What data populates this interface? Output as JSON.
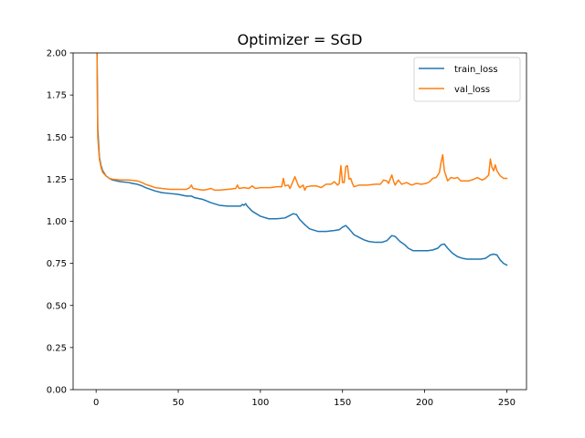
{
  "chart_data": {
    "type": "line",
    "title": "Optimizer = SGD",
    "xlabel": "",
    "ylabel": "",
    "xlim": [
      -14,
      262
    ],
    "ylim": [
      0.0,
      2.0
    ],
    "xticks": [
      0,
      50,
      100,
      150,
      200,
      250
    ],
    "xtick_labels": [
      "0",
      "50",
      "100",
      "150",
      "200",
      "250"
    ],
    "yticks": [
      0.0,
      0.25,
      0.5,
      0.75,
      1.0,
      1.25,
      1.5,
      1.75,
      2.0
    ],
    "ytick_labels": [
      "0.00",
      "0.25",
      "0.50",
      "0.75",
      "1.00",
      "1.25",
      "1.50",
      "1.75",
      "2.00"
    ],
    "grid": false,
    "legend_position": "upper right",
    "series": [
      {
        "name": "train_loss",
        "color": "#1f77b4",
        "points": [
          [
            0,
            2.6
          ],
          [
            1,
            1.55
          ],
          [
            2,
            1.38
          ],
          [
            3,
            1.33
          ],
          [
            4,
            1.3
          ],
          [
            6,
            1.27
          ],
          [
            8,
            1.255
          ],
          [
            10,
            1.245
          ],
          [
            15,
            1.235
          ],
          [
            20,
            1.23
          ],
          [
            22,
            1.225
          ],
          [
            25,
            1.22
          ],
          [
            28,
            1.21
          ],
          [
            30,
            1.2
          ],
          [
            33,
            1.19
          ],
          [
            36,
            1.18
          ],
          [
            40,
            1.17
          ],
          [
            45,
            1.165
          ],
          [
            50,
            1.16
          ],
          [
            55,
            1.15
          ],
          [
            58,
            1.15
          ],
          [
            60,
            1.14
          ],
          [
            65,
            1.13
          ],
          [
            70,
            1.11
          ],
          [
            75,
            1.095
          ],
          [
            80,
            1.09
          ],
          [
            85,
            1.09
          ],
          [
            88,
            1.09
          ],
          [
            89,
            1.1
          ],
          [
            90,
            1.095
          ],
          [
            91,
            1.105
          ],
          [
            92,
            1.09
          ],
          [
            95,
            1.06
          ],
          [
            100,
            1.03
          ],
          [
            105,
            1.015
          ],
          [
            110,
            1.015
          ],
          [
            115,
            1.02
          ],
          [
            118,
            1.035
          ],
          [
            120,
            1.045
          ],
          [
            122,
            1.04
          ],
          [
            124,
            1.01
          ],
          [
            127,
            0.98
          ],
          [
            130,
            0.955
          ],
          [
            135,
            0.94
          ],
          [
            140,
            0.94
          ],
          [
            145,
            0.945
          ],
          [
            148,
            0.95
          ],
          [
            150,
            0.965
          ],
          [
            152,
            0.975
          ],
          [
            154,
            0.955
          ],
          [
            157,
            0.92
          ],
          [
            160,
            0.905
          ],
          [
            163,
            0.89
          ],
          [
            166,
            0.88
          ],
          [
            170,
            0.875
          ],
          [
            174,
            0.875
          ],
          [
            177,
            0.885
          ],
          [
            180,
            0.915
          ],
          [
            182,
            0.91
          ],
          [
            185,
            0.88
          ],
          [
            188,
            0.86
          ],
          [
            190,
            0.84
          ],
          [
            193,
            0.825
          ],
          [
            198,
            0.825
          ],
          [
            202,
            0.825
          ],
          [
            205,
            0.83
          ],
          [
            208,
            0.84
          ],
          [
            210,
            0.86
          ],
          [
            212,
            0.865
          ],
          [
            214,
            0.84
          ],
          [
            217,
            0.81
          ],
          [
            220,
            0.79
          ],
          [
            223,
            0.78
          ],
          [
            226,
            0.775
          ],
          [
            230,
            0.775
          ],
          [
            234,
            0.775
          ],
          [
            237,
            0.78
          ],
          [
            240,
            0.8
          ],
          [
            242,
            0.805
          ],
          [
            244,
            0.8
          ],
          [
            246,
            0.77
          ],
          [
            248,
            0.75
          ],
          [
            250,
            0.74
          ]
        ]
      },
      {
        "name": "val_loss",
        "color": "#ff7f0e",
        "points": [
          [
            0,
            2.6
          ],
          [
            1,
            1.5
          ],
          [
            2,
            1.37
          ],
          [
            3,
            1.32
          ],
          [
            4,
            1.29
          ],
          [
            6,
            1.27
          ],
          [
            8,
            1.255
          ],
          [
            10,
            1.25
          ],
          [
            15,
            1.245
          ],
          [
            20,
            1.245
          ],
          [
            25,
            1.24
          ],
          [
            28,
            1.23
          ],
          [
            30,
            1.22
          ],
          [
            33,
            1.21
          ],
          [
            36,
            1.2
          ],
          [
            40,
            1.195
          ],
          [
            45,
            1.19
          ],
          [
            50,
            1.19
          ],
          [
            55,
            1.19
          ],
          [
            57,
            1.2
          ],
          [
            58,
            1.215
          ],
          [
            59,
            1.195
          ],
          [
            62,
            1.19
          ],
          [
            65,
            1.185
          ],
          [
            68,
            1.19
          ],
          [
            70,
            1.195
          ],
          [
            72,
            1.185
          ],
          [
            75,
            1.185
          ],
          [
            80,
            1.19
          ],
          [
            85,
            1.195
          ],
          [
            86,
            1.215
          ],
          [
            87,
            1.195
          ],
          [
            90,
            1.2
          ],
          [
            93,
            1.195
          ],
          [
            95,
            1.21
          ],
          [
            97,
            1.195
          ],
          [
            100,
            1.2
          ],
          [
            103,
            1.2
          ],
          [
            106,
            1.2
          ],
          [
            110,
            1.205
          ],
          [
            113,
            1.205
          ],
          [
            114,
            1.255
          ],
          [
            115,
            1.21
          ],
          [
            117,
            1.215
          ],
          [
            118,
            1.195
          ],
          [
            120,
            1.24
          ],
          [
            121,
            1.265
          ],
          [
            122,
            1.24
          ],
          [
            123,
            1.215
          ],
          [
            124,
            1.2
          ],
          [
            126,
            1.215
          ],
          [
            127,
            1.185
          ],
          [
            128,
            1.205
          ],
          [
            131,
            1.21
          ],
          [
            134,
            1.21
          ],
          [
            137,
            1.2
          ],
          [
            140,
            1.22
          ],
          [
            143,
            1.22
          ],
          [
            145,
            1.235
          ],
          [
            147,
            1.215
          ],
          [
            148,
            1.225
          ],
          [
            149,
            1.33
          ],
          [
            150,
            1.23
          ],
          [
            151,
            1.23
          ],
          [
            152,
            1.325
          ],
          [
            153,
            1.33
          ],
          [
            154,
            1.25
          ],
          [
            155,
            1.255
          ],
          [
            156,
            1.225
          ],
          [
            157,
            1.205
          ],
          [
            160,
            1.215
          ],
          [
            165,
            1.215
          ],
          [
            170,
            1.22
          ],
          [
            173,
            1.22
          ],
          [
            175,
            1.245
          ],
          [
            177,
            1.24
          ],
          [
            178,
            1.225
          ],
          [
            180,
            1.275
          ],
          [
            181,
            1.24
          ],
          [
            182,
            1.215
          ],
          [
            184,
            1.245
          ],
          [
            186,
            1.22
          ],
          [
            189,
            1.23
          ],
          [
            192,
            1.215
          ],
          [
            195,
            1.225
          ],
          [
            198,
            1.22
          ],
          [
            201,
            1.225
          ],
          [
            203,
            1.235
          ],
          [
            205,
            1.255
          ],
          [
            207,
            1.26
          ],
          [
            209,
            1.29
          ],
          [
            210,
            1.35
          ],
          [
            211,
            1.395
          ],
          [
            212,
            1.3
          ],
          [
            214,
            1.24
          ],
          [
            216,
            1.26
          ],
          [
            218,
            1.255
          ],
          [
            220,
            1.26
          ],
          [
            222,
            1.24
          ],
          [
            224,
            1.24
          ],
          [
            227,
            1.24
          ],
          [
            230,
            1.25
          ],
          [
            232,
            1.26
          ],
          [
            235,
            1.245
          ],
          [
            237,
            1.255
          ],
          [
            239,
            1.275
          ],
          [
            240,
            1.37
          ],
          [
            241,
            1.32
          ],
          [
            242,
            1.3
          ],
          [
            243,
            1.335
          ],
          [
            244,
            1.3
          ],
          [
            246,
            1.27
          ],
          [
            248,
            1.255
          ],
          [
            250,
            1.255
          ]
        ]
      }
    ]
  }
}
